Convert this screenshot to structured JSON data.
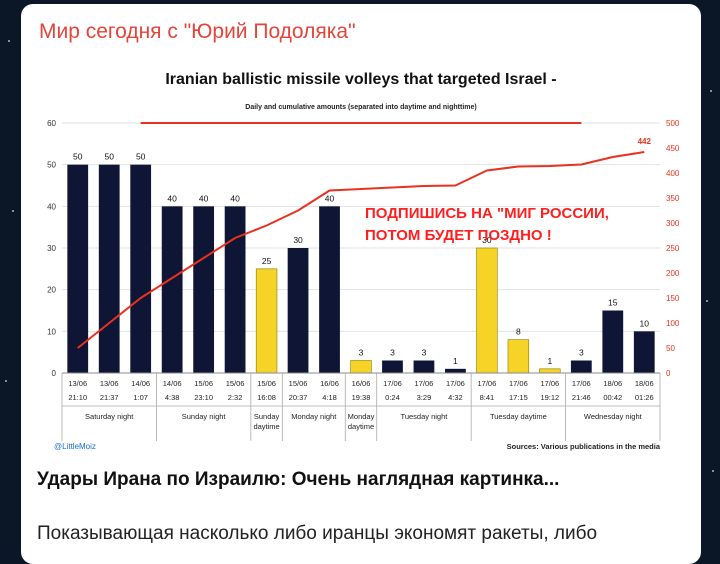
{
  "post": {
    "channel_name": "Мир сегодня с \"Юрий Подоляка\"",
    "title": "Удары Ирана по Израилю: Очень наглядная картинка...",
    "text": "Показывающая насколько либо иранцы экономят ракеты, либо",
    "promo_line1": "ПОДПИШИСЬ НА \"МИГ РОССИИ,",
    "promo_line2": "ПОТОМ БУДЕТ ПОЗДНО !"
  },
  "colors": {
    "night_bar": "#0f1535",
    "day_bar": "#f5d327",
    "line": "#e8321f",
    "channel": "#e4443a",
    "promo": "#ff1f1f"
  },
  "chart_data": {
    "type": "bar",
    "title": "Iranian ballistic missile volleys that targeted Israel -",
    "subtitle": "Daily and cumulative amounts (separated into daytime and nighttime)",
    "credit": "@LittleMoiz",
    "source": "Sources: Various publications in the media",
    "categories_date": [
      "13/06",
      "13/06",
      "14/06",
      "14/06",
      "15/06",
      "15/06",
      "15/06",
      "15/06",
      "16/06",
      "16/06",
      "17/06",
      "17/06",
      "17/06",
      "17/06",
      "17/06",
      "17/06",
      "17/06",
      "18/06",
      "18/06"
    ],
    "categories_time": [
      "21:10",
      "21:37",
      "1:07",
      "4:38",
      "23:10",
      "2:32",
      "16:08",
      "20:37",
      "4:18",
      "19:38",
      "0:24",
      "3:29",
      "4:32",
      "8:41",
      "17:15",
      "19:12",
      "21:46",
      "00:42",
      "01:26"
    ],
    "values": [
      50,
      50,
      50,
      40,
      40,
      40,
      25,
      30,
      40,
      3,
      3,
      3,
      1,
      30,
      8,
      1,
      3,
      15,
      10
    ],
    "bar_kind": [
      "night",
      "night",
      "night",
      "night",
      "night",
      "night",
      "day",
      "night",
      "night",
      "day",
      "night",
      "night",
      "night",
      "day",
      "day",
      "day",
      "night",
      "night",
      "night"
    ],
    "cumulative": [
      50,
      100,
      150,
      190,
      230,
      270,
      295,
      325,
      365,
      368,
      371,
      374,
      375,
      405,
      413,
      414,
      417,
      432,
      442
    ],
    "cumulative_label": "442",
    "groups": [
      {
        "label": "Saturday night",
        "span": 3
      },
      {
        "label": "Sunday night",
        "span": 3
      },
      {
        "label": "Sunday daytime",
        "span": 1
      },
      {
        "label": "Monday night",
        "span": 2
      },
      {
        "label": "Monday daytime",
        "span": 1
      },
      {
        "label": "Tuesday night",
        "span": 3
      },
      {
        "label": "Tuesday daytime",
        "span": 3
      },
      {
        "label": "Wednesday night",
        "span": 3
      }
    ],
    "y_left": [
      0,
      60
    ],
    "y_left_ticks": [
      0,
      10,
      20,
      30,
      40,
      50,
      60
    ],
    "y_right": [
      0,
      500
    ],
    "y_right_ticks": [
      0,
      50,
      100,
      150,
      200,
      250,
      300,
      350,
      400,
      450,
      500
    ],
    "grid": true
  }
}
